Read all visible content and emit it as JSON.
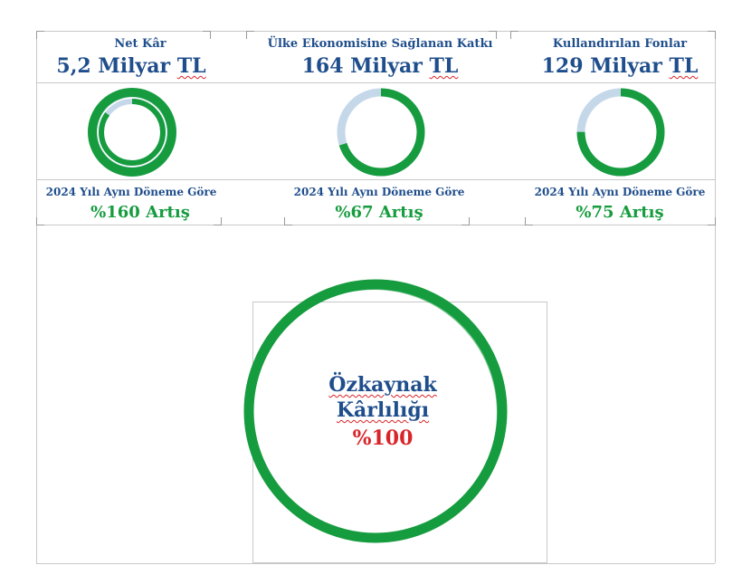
{
  "cards": [
    {
      "title": "Net Kâr",
      "value_number": "5,2 Milyar",
      "value_unit": "TL",
      "growth_label": "2024 Yılı Aynı Döneme Göre",
      "growth_value": "%160 Artış",
      "ring_progress_pct": 85
    },
    {
      "title": "Ülke Ekonomisine Sağlanan Katkı",
      "value_number": "164 Milyar",
      "value_unit": "TL",
      "growth_label": "2024 Yılı Aynı Döneme Göre",
      "growth_value": "%67 Artış",
      "ring_progress_pct": 70
    },
    {
      "title": "Kullandırılan Fonlar",
      "value_number": "129 Milyar",
      "value_unit": "TL",
      "growth_label": "2024 Yılı Aynı Döneme Göre",
      "growth_value": "%75 Artış",
      "ring_progress_pct": 75
    }
  ],
  "roe": {
    "line1": "Özkaynak",
    "line2": "Kârlılığı",
    "value": "%100",
    "progress_pct": 100
  },
  "colors": {
    "green": "#169c3f",
    "light": "#c5d8ea",
    "blue": "#1f4e8c",
    "red": "#d9252a"
  }
}
